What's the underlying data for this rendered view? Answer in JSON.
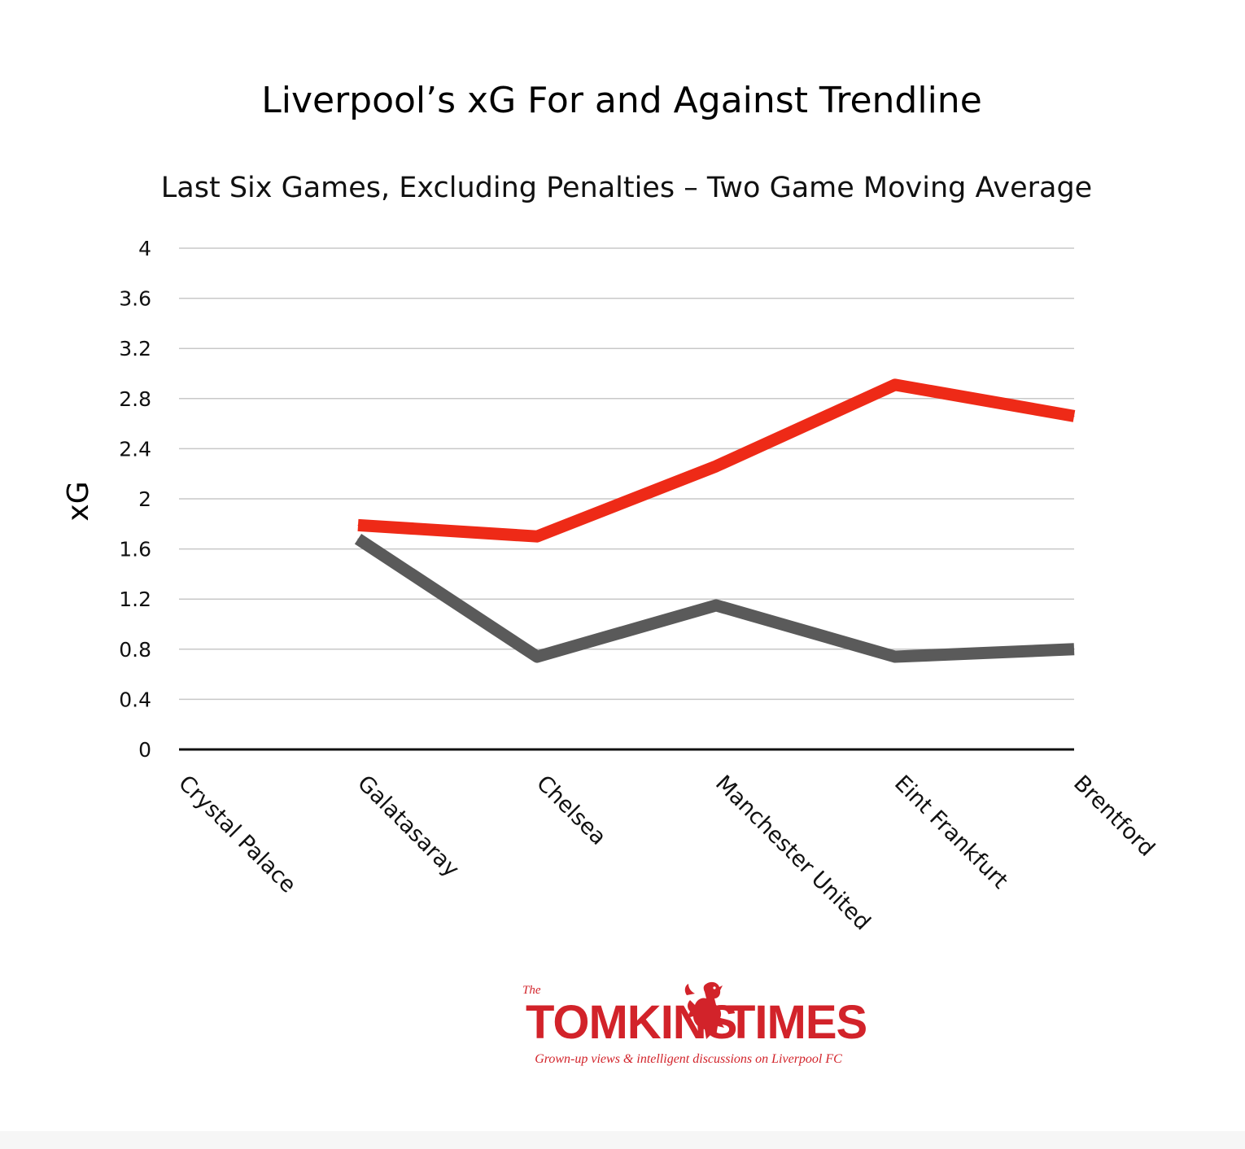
{
  "chart_data": {
    "type": "line",
    "title": "Liverpool’s xG For and Against Trendline",
    "subtitle": "Last Six Games, Excluding Penalties – Two Game Moving Average",
    "xlabel": "",
    "ylabel": "xG",
    "categories": [
      "Crystal Palace",
      "Galatasaray",
      "Chelsea",
      "Manchester United",
      "Eint Frankfurt",
      "Brentford"
    ],
    "ylim": [
      0,
      4
    ],
    "yticks": [
      "0",
      "0.4",
      "0.8",
      "1.2",
      "1.6",
      "2",
      "2.4",
      "2.8",
      "3.2",
      "3.6",
      "4"
    ],
    "grid": true,
    "series": [
      {
        "color": "#ee2a17",
        "values": [
          null,
          1.79,
          1.7,
          2.26,
          2.91,
          2.66
        ]
      },
      {
        "color": "#5a5a5a",
        "values": [
          null,
          1.68,
          0.74,
          1.15,
          0.74,
          0.8
        ]
      }
    ]
  },
  "branding": {
    "small": "The",
    "name_left": "TOMKINS",
    "name_right": "TIMES",
    "tagline": "Grown-up views & intelligent discussions on Liverpool FC",
    "color": "#d2232a",
    "logo_icon": "liver-bird-icon"
  }
}
